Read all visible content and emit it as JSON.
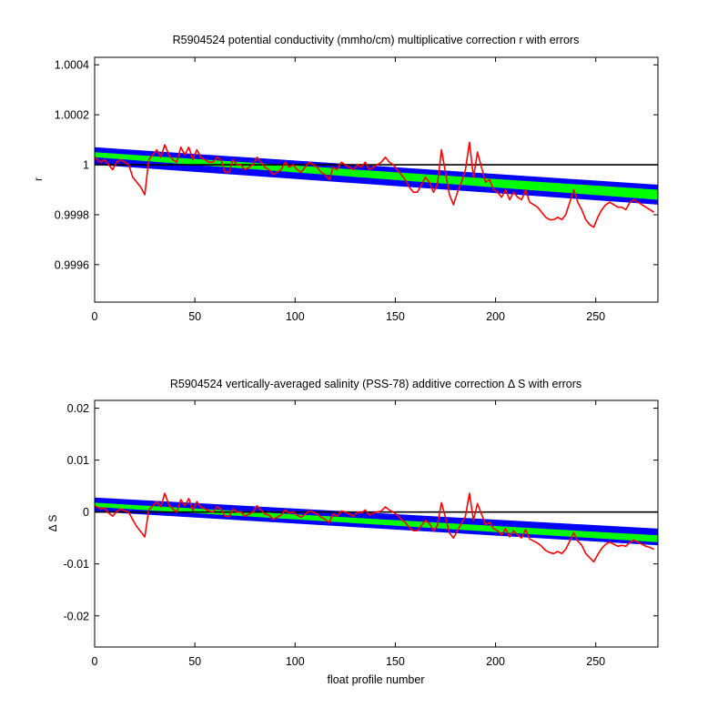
{
  "colors": {
    "background": "#ffffff",
    "axes": "#000000",
    "band_outer": "#0000ff",
    "band_inner": "#00ff00",
    "data_line": "#ff0000",
    "reference_line": "#000000"
  },
  "chart_data": [
    {
      "type": "line",
      "title": "R5904524 potential conductivity (mmho/cm) multiplicative correction r with errors",
      "xlabel": "",
      "ylabel": "r",
      "xlim": [
        0,
        281
      ],
      "ylim": [
        0.99945,
        1.00043
      ],
      "xticks": [
        0,
        50,
        100,
        150,
        200,
        250
      ],
      "xtick_labels": [
        "0",
        "50",
        "100",
        "150",
        "200",
        "250"
      ],
      "yticks": [
        0.9996,
        0.9998,
        1.0,
        1.0002,
        1.0004
      ],
      "ytick_labels": [
        "0.9996",
        "0.9998",
        "1",
        "1.0002",
        "1.0004"
      ],
      "grid": false,
      "reference_line": {
        "y": 1.0
      },
      "error_band": {
        "x": [
          0,
          281
        ],
        "upper": [
          1.00007,
          0.99992
        ],
        "mid_upper": [
          1.00005,
          0.9999
        ],
        "mid_lower": [
          1.00003,
          0.99986
        ],
        "lower": [
          1.0,
          0.99984
        ]
      },
      "series": [
        {
          "x": [
            0,
            3,
            5,
            7,
            9,
            11,
            13,
            15,
            17,
            19,
            21,
            23,
            25,
            27,
            29,
            31,
            33,
            35,
            37,
            39,
            41,
            43,
            45,
            47,
            49,
            51,
            53,
            55,
            57,
            59,
            61,
            63,
            65,
            67,
            69,
            71,
            73,
            75,
            77,
            79,
            81,
            83,
            85,
            87,
            89,
            91,
            93,
            95,
            97,
            99,
            101,
            103,
            105,
            107,
            109,
            111,
            113,
            115,
            117,
            119,
            121,
            123,
            125,
            127,
            129,
            131,
            133,
            135,
            137,
            139,
            141,
            143,
            145,
            147,
            149,
            151,
            153,
            155,
            157,
            159,
            161,
            163,
            165,
            167,
            169,
            171,
            173,
            175,
            177,
            179,
            181,
            183,
            185,
            187,
            189,
            191,
            193,
            195,
            197,
            199,
            201,
            203,
            205,
            207,
            209,
            211,
            213,
            215,
            217,
            219,
            221,
            223,
            225,
            227,
            229,
            231,
            233,
            235,
            237,
            239,
            241,
            243,
            245,
            247,
            249,
            251,
            253,
            255,
            257,
            259,
            261,
            263,
            265,
            267,
            269,
            271,
            273,
            275,
            277,
            279
          ],
          "y": [
            1.00003,
            1.00001,
            1.00002,
            1.0,
            0.99998,
            1.00001,
            1.00002,
            1.00001,
            1.0,
            0.99995,
            0.99993,
            0.99991,
            0.99988,
            1.00002,
            1.00004,
            1.00006,
            1.00003,
            1.00008,
            1.00004,
            1.00002,
            1.00001,
            1.00007,
            1.00004,
            1.00007,
            1.00002,
            1.00006,
            1.00003,
            1.00002,
            1.00001,
            1.00001,
            1.00003,
            1.00002,
            0.99997,
            0.99997,
            1.00002,
            1.0,
            1.0,
            0.99998,
            0.99999,
            1.0,
            1.00003,
            1.00001,
            0.99999,
            0.99998,
            0.99996,
            0.99997,
            0.99998,
            1.00001,
            0.99999,
            1.0,
            0.99998,
            0.99997,
            0.99999,
            1.00001,
            1.0,
            0.99999,
            0.99997,
            0.99996,
            0.99994,
            0.99999,
            0.99998,
            1.00001,
            1.0,
            0.99999,
            0.99998,
            1.0,
            0.99999,
            1.00001,
            0.99998,
            0.99999,
            1.0,
            1.00001,
            1.00003,
            1.00001,
            1.0,
            0.99998,
            0.99996,
            0.99994,
            0.99991,
            0.99989,
            0.99989,
            0.99992,
            0.99995,
            0.99993,
            0.99989,
            0.99992,
            1.00006,
            0.99997,
            0.99988,
            0.99984,
            0.99989,
            0.99993,
            0.99998,
            1.00009,
            0.99995,
            1.00005,
            0.99999,
            0.99993,
            0.99994,
            0.9999,
            0.99989,
            0.99987,
            0.9999,
            0.99986,
            0.99989,
            0.99987,
            0.99986,
            0.9999,
            0.99985,
            0.99984,
            0.99983,
            0.99981,
            0.99979,
            0.99978,
            0.99978,
            0.99979,
            0.99978,
            0.9998,
            0.99985,
            0.9999,
            0.99985,
            0.99982,
            0.99978,
            0.99976,
            0.99975,
            0.99979,
            0.99982,
            0.99984,
            0.99985,
            0.99984,
            0.99983,
            0.99983,
            0.99982,
            0.99985,
            0.99986,
            0.99985,
            0.99984,
            0.99983,
            0.99982,
            0.99981
          ]
        }
      ]
    },
    {
      "type": "line",
      "title": "R5904524 vertically-averaged salinity (PSS-78) additive correction Δ S with errors",
      "xlabel": "float profile number",
      "ylabel": "Δ S",
      "xlim": [
        0,
        281
      ],
      "ylim": [
        -0.026,
        0.0215
      ],
      "xticks": [
        0,
        50,
        100,
        150,
        200,
        250
      ],
      "xtick_labels": [
        "0",
        "50",
        "100",
        "150",
        "200",
        "250"
      ],
      "yticks": [
        -0.02,
        -0.01,
        0,
        0.01,
        0.02
      ],
      "ytick_labels": [
        "-0.02",
        "-0.01",
        "0",
        "0.01",
        "0.02"
      ],
      "grid": false,
      "reference_line": {
        "y": 0
      },
      "error_band": {
        "x": [
          0,
          281
        ],
        "upper": [
          0.0028,
          -0.0032
        ],
        "mid_upper": [
          0.0018,
          -0.0045
        ],
        "mid_lower": [
          0.001,
          -0.0058
        ],
        "lower": [
          0.0001,
          -0.0064
        ]
      },
      "series": [
        {
          "x": [
            0,
            3,
            5,
            7,
            9,
            11,
            13,
            15,
            17,
            19,
            21,
            23,
            25,
            27,
            29,
            31,
            33,
            35,
            37,
            39,
            41,
            43,
            45,
            47,
            49,
            51,
            53,
            55,
            57,
            59,
            61,
            63,
            65,
            67,
            69,
            71,
            73,
            75,
            77,
            79,
            81,
            83,
            85,
            87,
            89,
            91,
            93,
            95,
            97,
            99,
            101,
            103,
            105,
            107,
            109,
            111,
            113,
            115,
            117,
            119,
            121,
            123,
            125,
            127,
            129,
            131,
            133,
            135,
            137,
            139,
            141,
            143,
            145,
            147,
            149,
            151,
            153,
            155,
            157,
            159,
            161,
            163,
            165,
            167,
            169,
            171,
            173,
            175,
            177,
            179,
            181,
            183,
            185,
            187,
            189,
            191,
            193,
            195,
            197,
            199,
            201,
            203,
            205,
            207,
            209,
            211,
            213,
            215,
            217,
            219,
            221,
            223,
            225,
            227,
            229,
            231,
            233,
            235,
            237,
            239,
            241,
            243,
            245,
            247,
            249,
            251,
            253,
            255,
            257,
            259,
            261,
            263,
            265,
            267,
            269,
            271,
            273,
            275,
            277,
            279
          ],
          "y": [
            0.0012,
            0.0006,
            0.0008,
            -0.0002,
            -0.0008,
            0.0001,
            0.0006,
            0.0002,
            0.0,
            -0.0015,
            -0.0028,
            -0.0038,
            -0.0048,
            0.0004,
            0.0012,
            0.002,
            0.001,
            0.0036,
            0.0014,
            0.0006,
            0.0,
            0.0024,
            0.0012,
            0.0026,
            0.0003,
            0.002,
            0.001,
            0.0006,
            0.0002,
            0.0,
            0.001,
            0.0006,
            -0.0008,
            -0.0009,
            0.0006,
            0.0,
            0.0,
            -0.0008,
            -0.0004,
            0.0,
            0.0012,
            0.0004,
            -0.0004,
            -0.0006,
            -0.0014,
            -0.001,
            -0.0006,
            0.0004,
            -0.0002,
            0.0,
            -0.0006,
            -0.001,
            -0.0004,
            0.0002,
            0.0,
            -0.0004,
            -0.001,
            -0.0014,
            -0.002,
            -0.0004,
            -0.0008,
            0.0002,
            0.0,
            -0.0004,
            -0.0008,
            0.0,
            -0.0002,
            0.0004,
            -0.0006,
            -0.0002,
            0.0,
            0.0002,
            0.001,
            0.0004,
            0.0,
            -0.0006,
            -0.0014,
            -0.002,
            -0.003,
            -0.0036,
            -0.0036,
            -0.0026,
            -0.0016,
            -0.0022,
            -0.0036,
            -0.0026,
            0.0018,
            -0.001,
            -0.004,
            -0.005,
            -0.0036,
            -0.0022,
            -0.0008,
            0.0036,
            -0.0016,
            0.0016,
            -0.0004,
            -0.0024,
            -0.002,
            -0.0032,
            -0.0036,
            -0.0044,
            -0.0032,
            -0.0048,
            -0.0036,
            -0.0044,
            -0.005,
            -0.0034,
            -0.0052,
            -0.0056,
            -0.006,
            -0.0066,
            -0.0074,
            -0.0078,
            -0.008,
            -0.0076,
            -0.008,
            -0.0072,
            -0.0056,
            -0.004,
            -0.0056,
            -0.0064,
            -0.008,
            -0.0088,
            -0.0096,
            -0.0082,
            -0.007,
            -0.0062,
            -0.0058,
            -0.0062,
            -0.0066,
            -0.0064,
            -0.0066,
            -0.0058,
            -0.0054,
            -0.0058,
            -0.0062,
            -0.0066,
            -0.0068,
            -0.0072
          ]
        }
      ]
    }
  ]
}
